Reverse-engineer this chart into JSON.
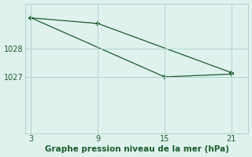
{
  "line1_x": [
    3,
    9,
    21
  ],
  "line1_y": [
    1029.1,
    1028.9,
    1027.15
  ],
  "line2_x": [
    3,
    15,
    21
  ],
  "line2_y": [
    1029.1,
    1027.0,
    1027.1
  ],
  "line_color": "#1a5c2a",
  "bg_color": "#dff2ee",
  "grid_color": "#b0d4cc",
  "xlabel": "Graphe pression niveau de la mer (hPa)",
  "xticks": [
    3,
    9,
    15,
    21
  ],
  "yticks": [
    1027,
    1028
  ],
  "xlim": [
    2.5,
    22.5
  ],
  "ylim": [
    1025.0,
    1029.6
  ],
  "marker": "+",
  "markersize": 5,
  "markeredgewidth": 1.5,
  "linewidth": 0.9,
  "tick_fontsize": 7,
  "xlabel_fontsize": 7.5
}
